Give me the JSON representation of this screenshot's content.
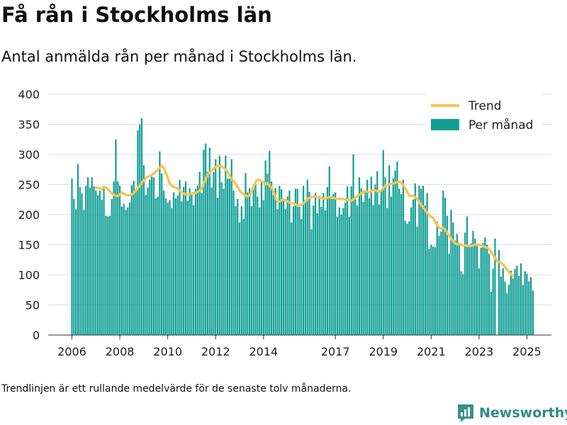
{
  "header": {
    "title": "Få rån i Stockholms län",
    "subtitle": "Antal anmälda rån per månad i Stockholms län."
  },
  "footer": {
    "note": "Trendlinjen är ett rullande medelvärde för de senaste tolv månaderna.",
    "brand": "Newsworthy"
  },
  "colors": {
    "bar": "#0f9e95",
    "trend": "#f6c556",
    "grid": "#dddddd",
    "brand": "#2e8b86"
  },
  "icons": {
    "brand_logo": "newsworthy-logo-icon"
  },
  "chart_data": {
    "type": "bar",
    "ylim": [
      0,
      400
    ],
    "yticks": [
      0,
      50,
      100,
      150,
      200,
      250,
      300,
      350,
      400
    ],
    "xticks": [
      {
        "label": "2006",
        "value": 2006
      },
      {
        "label": "2008",
        "value": 2008
      },
      {
        "label": "2010",
        "value": 2010
      },
      {
        "label": "2012",
        "value": 2012
      },
      {
        "label": "2014",
        "value": 2014
      },
      {
        "label": "2017",
        "value": 2017
      },
      {
        "label": "2019",
        "value": 2019
      },
      {
        "label": "2021",
        "value": 2021
      },
      {
        "label": "2023",
        "value": 2023
      },
      {
        "label": "2025",
        "value": 2025
      }
    ],
    "grid": true,
    "legend_position": "top-right",
    "start": "2006-01",
    "series": [
      {
        "name": "Per månad",
        "type": "bar",
        "values": [
          260,
          226,
          209,
          284,
          246,
          235,
          208,
          248,
          262,
          245,
          262,
          247,
          240,
          232,
          240,
          225,
          243,
          198,
          197,
          198,
          226,
          255,
          325,
          255,
          248,
          213,
          218,
          208,
          212,
          220,
          249,
          256,
          243,
          340,
          350,
          360,
          282,
          233,
          245,
          258,
          263,
          262,
          227,
          230,
          305,
          268,
          240,
          227,
          220,
          224,
          211,
          237,
          227,
          232,
          258,
          222,
          246,
          255,
          223,
          244,
          236,
          216,
          243,
          248,
          271,
          236,
          308,
          318,
          271,
          311,
          245,
          271,
          292,
          228,
          298,
          254,
          243,
          298,
          260,
          260,
          292,
          240,
          214,
          226,
          187,
          214,
          193,
          269,
          237,
          244,
          214,
          250,
          252,
          230,
          212,
          256,
          224,
          290,
          268,
          306,
          255,
          233,
          244,
          209,
          248,
          242,
          223,
          209,
          230,
          240,
          187,
          214,
          243,
          243,
          213,
          193,
          248,
          221,
          258,
          238,
          176,
          215,
          236,
          202,
          231,
          213,
          236,
          207,
          246,
          280,
          230,
          234,
          237,
          196,
          212,
          200,
          211,
          220,
          247,
          196,
          247,
          300,
          225,
          215,
          262,
          244,
          221,
          240,
          258,
          227,
          263,
          216,
          250,
          272,
          217,
          240,
          307,
          262,
          211,
          282,
          230,
          260,
          273,
          288,
          243,
          234,
          258,
          190,
          185,
          189,
          212,
          225,
          252,
          180,
          248,
          243,
          248,
          215,
          236,
          143,
          150,
          147,
          146,
          188,
          165,
          172,
          240,
          228,
          198,
          135,
          208,
          187,
          157,
          168,
          150,
          106,
          101,
          170,
          197,
          147,
          152,
          173,
          160,
          148,
          111,
          145,
          153,
          162,
          150,
          135,
          72,
          110,
          160,
          0,
          141,
          97,
          111,
          89,
          70,
          84,
          107,
          94,
          110,
          115,
          98,
          119,
          83,
          106,
          102,
          89,
          96,
          74
        ]
      },
      {
        "name": "Trend",
        "type": "line",
        "start": "2007-01",
        "values": [
          245,
          244,
          244,
          242,
          246,
          245,
          242,
          239,
          235,
          233,
          231,
          231,
          233,
          237,
          235,
          233,
          232,
          232,
          233,
          236,
          240,
          244,
          248,
          253,
          257,
          260,
          263,
          264,
          266,
          268,
          272,
          274,
          278,
          281,
          278,
          270,
          261,
          252,
          248,
          246,
          245,
          243,
          240,
          237,
          235,
          234,
          234,
          234,
          235,
          236,
          236,
          238,
          240,
          243,
          251,
          259,
          266,
          270,
          273,
          277,
          279,
          281,
          281,
          280,
          278,
          275,
          271,
          265,
          259,
          256,
          251,
          246,
          240,
          237,
          234,
          232,
          230,
          232,
          238,
          246,
          254,
          258,
          258,
          255,
          254,
          251,
          252,
          248,
          245,
          238,
          229,
          222,
          222,
          224,
          225,
          224,
          222,
          220,
          219,
          219,
          217,
          215,
          216,
          216,
          219,
          222,
          226,
          228,
          229,
          230,
          230,
          229,
          228,
          228,
          227,
          226,
          228,
          229,
          228,
          228,
          227,
          226,
          226,
          226,
          226,
          225,
          224,
          224,
          223,
          225,
          228,
          231,
          233,
          235,
          238,
          239,
          238,
          237,
          239,
          241,
          240,
          239,
          238,
          240,
          244,
          248,
          249,
          250,
          251,
          252,
          253,
          254,
          255,
          253,
          249,
          244,
          238,
          232,
          231,
          231,
          229,
          226,
          221,
          216,
          212,
          208,
          203,
          199,
          196,
          195,
          188,
          183,
          178,
          177,
          178,
          175,
          170,
          165,
          160,
          156,
          152,
          151,
          152,
          150,
          149,
          149,
          148,
          148,
          148,
          149,
          150,
          150,
          150,
          149,
          148,
          146,
          145,
          143,
          138,
          133,
          128,
          123,
          121,
          120,
          117,
          113,
          109,
          105,
          101,
          98
        ]
      }
    ]
  }
}
